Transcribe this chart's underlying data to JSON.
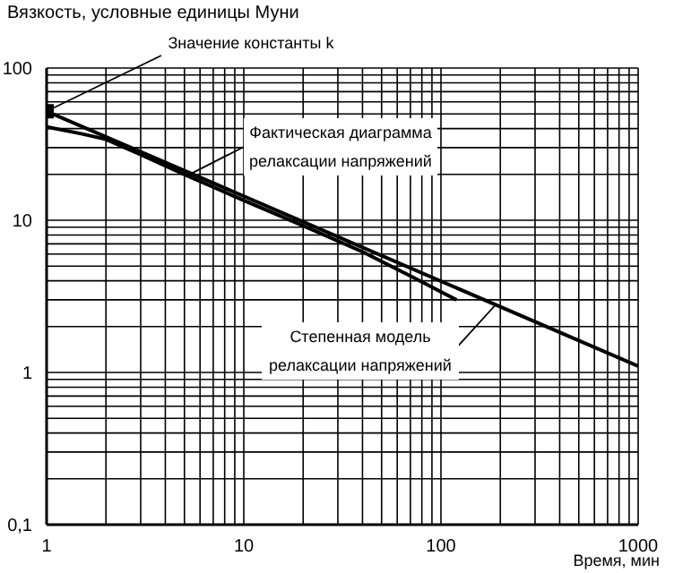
{
  "chart_data": {
    "type": "line",
    "ylabel": "Вязкость, условные единицы Муни",
    "xlabel": "Время, мин",
    "log": "xy",
    "grid": true,
    "line_style": "solid",
    "marker": "none",
    "xlim": [
      1,
      1000
    ],
    "ylim": [
      0.1,
      100
    ],
    "xticks": [
      1,
      {
        "value": 2,
        "label": null
      },
      {
        "value": 3,
        "label": null
      },
      {
        "value": 4,
        "label": null
      },
      {
        "value": 5,
        "label": null
      },
      {
        "value": 6,
        "label": null
      },
      {
        "value": 7,
        "label": null
      },
      {
        "value": 8,
        "label": null
      },
      {
        "value": 9,
        "label": null
      },
      10,
      {
        "value": 20,
        "label": null
      },
      {
        "value": 30,
        "label": null
      },
      {
        "value": 40,
        "label": null
      },
      {
        "value": 50,
        "label": null
      },
      {
        "value": 60,
        "label": null
      },
      {
        "value": 70,
        "label": null
      },
      {
        "value": 80,
        "label": null
      },
      {
        "value": 90,
        "label": null
      },
      100,
      {
        "value": 200,
        "label": null
      },
      {
        "value": 300,
        "label": null
      },
      {
        "value": 400,
        "label": null
      },
      {
        "value": 500,
        "label": null
      },
      {
        "value": 600,
        "label": null
      },
      {
        "value": 700,
        "label": null
      },
      {
        "value": 800,
        "label": null
      },
      {
        "value": 900,
        "label": null
      },
      1000
    ],
    "yticks": [
      {
        "value": 0.1,
        "label": "0,1"
      },
      {
        "value": 0.2,
        "label": null
      },
      {
        "value": 0.3,
        "label": null
      },
      {
        "value": 0.4,
        "label": null
      },
      {
        "value": 0.5,
        "label": null
      },
      {
        "value": 0.6,
        "label": null
      },
      {
        "value": 0.7,
        "label": null
      },
      {
        "value": 0.8,
        "label": null
      },
      {
        "value": 0.9,
        "label": null
      },
      1,
      {
        "value": 2,
        "label": null
      },
      {
        "value": 3,
        "label": null
      },
      {
        "value": 4,
        "label": null
      },
      {
        "value": 5,
        "label": null
      },
      {
        "value": 6,
        "label": null
      },
      {
        "value": 7,
        "label": null
      },
      {
        "value": 8,
        "label": null
      },
      {
        "value": 9,
        "label": null
      },
      10,
      {
        "value": 20,
        "label": null
      },
      {
        "value": 30,
        "label": null
      },
      {
        "value": 40,
        "label": null
      },
      {
        "value": 50,
        "label": null
      },
      {
        "value": 60,
        "label": null
      },
      {
        "value": 70,
        "label": null
      },
      {
        "value": 80,
        "label": null
      },
      {
        "value": 90,
        "label": null
      },
      100
    ],
    "series": [
      {
        "color": "#000000",
        "x": [
          1,
          1000
        ],
        "values": [
          52,
          1.1
        ]
      },
      {
        "color": "#000000",
        "x": [
          1,
          1.5,
          2,
          3,
          5,
          10,
          20,
          40,
          70,
          120
        ],
        "values": [
          41,
          37,
          34,
          27,
          20,
          13.5,
          9.2,
          6.2,
          4.3,
          3.0
        ]
      },
      {
        "type": "scatter",
        "color": "#000000",
        "marker": "square",
        "x": [
          1
        ],
        "values": [
          52
        ]
      }
    ],
    "annotations": [
      {
        "text": "Значение константы k",
        "x": 1,
        "y": 52
      },
      {
        "text": "Фактическая диаграмма релаксации напряжений",
        "x": 5.3,
        "y": 20
      },
      {
        "text": "Степенная модель релаксации напряжений",
        "x": 190,
        "y": 2.8
      }
    ]
  }
}
